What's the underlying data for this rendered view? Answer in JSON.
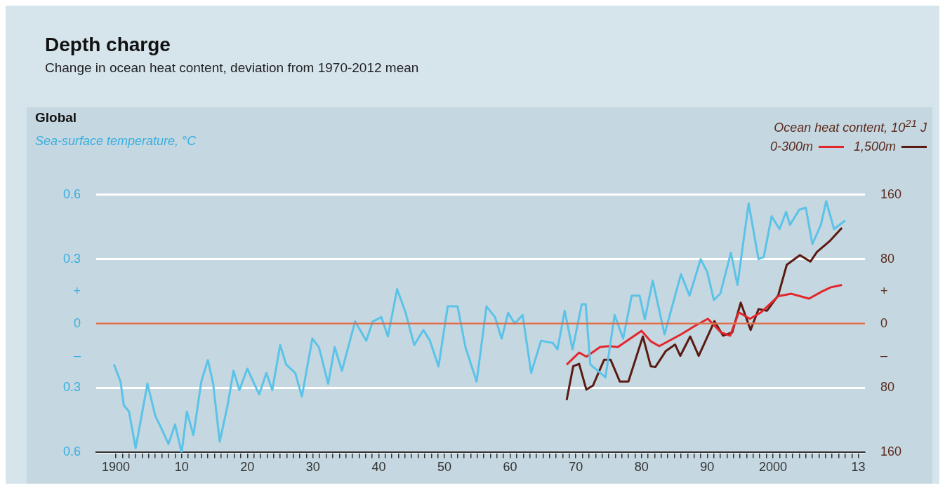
{
  "chart_data": {
    "type": "line",
    "title": "Depth charge",
    "subtitle": "Change in ocean heat content, deviation from 1970-2012 mean",
    "annotations": [
      "Global"
    ],
    "ylabel": "Sea-surface temperature, °C",
    "legend_title": "Ocean heat content, 10$^{21}$ J",
    "legend": "top right",
    "grid": "y",
    "marker": "none",
    "line_style": "solid",
    "xlim": [
      1897,
      2014
    ],
    "xticks": [
      1900,
      {
        "value": 1901,
        "label": null
      },
      {
        "value": 1902,
        "label": null
      },
      {
        "value": 1903,
        "label": null
      },
      {
        "value": 1904,
        "label": null
      },
      {
        "value": 1905,
        "label": null
      },
      {
        "value": 1906,
        "label": null
      },
      {
        "value": 1907,
        "label": null
      },
      {
        "value": 1908,
        "label": null
      },
      {
        "value": 1909,
        "label": null
      },
      {
        "value": 1910,
        "label": "10"
      },
      {
        "value": 1911,
        "label": null
      },
      {
        "value": 1912,
        "label": null
      },
      {
        "value": 1913,
        "label": null
      },
      {
        "value": 1914,
        "label": null
      },
      {
        "value": 1915,
        "label": null
      },
      {
        "value": 1916,
        "label": null
      },
      {
        "value": 1917,
        "label": null
      },
      {
        "value": 1918,
        "label": null
      },
      {
        "value": 1919,
        "label": null
      },
      {
        "value": 1920,
        "label": "20"
      },
      {
        "value": 1921,
        "label": null
      },
      {
        "value": 1922,
        "label": null
      },
      {
        "value": 1923,
        "label": null
      },
      {
        "value": 1924,
        "label": null
      },
      {
        "value": 1925,
        "label": null
      },
      {
        "value": 1926,
        "label": null
      },
      {
        "value": 1927,
        "label": null
      },
      {
        "value": 1928,
        "label": null
      },
      {
        "value": 1929,
        "label": null
      },
      {
        "value": 1930,
        "label": "30"
      },
      {
        "value": 1931,
        "label": null
      },
      {
        "value": 1932,
        "label": null
      },
      {
        "value": 1933,
        "label": null
      },
      {
        "value": 1934,
        "label": null
      },
      {
        "value": 1935,
        "label": null
      },
      {
        "value": 1936,
        "label": null
      },
      {
        "value": 1937,
        "label": null
      },
      {
        "value": 1938,
        "label": null
      },
      {
        "value": 1939,
        "label": null
      },
      {
        "value": 1940,
        "label": "40"
      },
      {
        "value": 1941,
        "label": null
      },
      {
        "value": 1942,
        "label": null
      },
      {
        "value": 1943,
        "label": null
      },
      {
        "value": 1944,
        "label": null
      },
      {
        "value": 1945,
        "label": null
      },
      {
        "value": 1946,
        "label": null
      },
      {
        "value": 1947,
        "label": null
      },
      {
        "value": 1948,
        "label": null
      },
      {
        "value": 1949,
        "label": null
      },
      {
        "value": 1950,
        "label": "50"
      },
      {
        "value": 1951,
        "label": null
      },
      {
        "value": 1952,
        "label": null
      },
      {
        "value": 1953,
        "label": null
      },
      {
        "value": 1954,
        "label": null
      },
      {
        "value": 1955,
        "label": null
      },
      {
        "value": 1956,
        "label": null
      },
      {
        "value": 1957,
        "label": null
      },
      {
        "value": 1958,
        "label": null
      },
      {
        "value": 1959,
        "label": null
      },
      {
        "value": 1960,
        "label": "60"
      },
      {
        "value": 1961,
        "label": null
      },
      {
        "value": 1962,
        "label": null
      },
      {
        "value": 1963,
        "label": null
      },
      {
        "value": 1964,
        "label": null
      },
      {
        "value": 1965,
        "label": null
      },
      {
        "value": 1966,
        "label": null
      },
      {
        "value": 1967,
        "label": null
      },
      {
        "value": 1968,
        "label": null
      },
      {
        "value": 1969,
        "label": null
      },
      {
        "value": 1970,
        "label": "70"
      },
      {
        "value": 1971,
        "label": null
      },
      {
        "value": 1972,
        "label": null
      },
      {
        "value": 1973,
        "label": null
      },
      {
        "value": 1974,
        "label": null
      },
      {
        "value": 1975,
        "label": null
      },
      {
        "value": 1976,
        "label": null
      },
      {
        "value": 1977,
        "label": null
      },
      {
        "value": 1978,
        "label": null
      },
      {
        "value": 1979,
        "label": null
      },
      {
        "value": 1980,
        "label": "80"
      },
      {
        "value": 1981,
        "label": null
      },
      {
        "value": 1982,
        "label": null
      },
      {
        "value": 1983,
        "label": null
      },
      {
        "value": 1984,
        "label": null
      },
      {
        "value": 1985,
        "label": null
      },
      {
        "value": 1986,
        "label": null
      },
      {
        "value": 1987,
        "label": null
      },
      {
        "value": 1988,
        "label": null
      },
      {
        "value": 1989,
        "label": null
      },
      {
        "value": 1990,
        "label": "90"
      },
      {
        "value": 1991,
        "label": null
      },
      {
        "value": 1992,
        "label": null
      },
      {
        "value": 1993,
        "label": null
      },
      {
        "value": 1994,
        "label": null
      },
      {
        "value": 1995,
        "label": null
      },
      {
        "value": 1996,
        "label": null
      },
      {
        "value": 1997,
        "label": null
      },
      {
        "value": 1998,
        "label": null
      },
      {
        "value": 1999,
        "label": null
      },
      2000,
      {
        "value": 2001,
        "label": null
      },
      {
        "value": 2002,
        "label": null
      },
      {
        "value": 2003,
        "label": null
      },
      {
        "value": 2004,
        "label": null
      },
      {
        "value": 2005,
        "label": null
      },
      {
        "value": 2006,
        "label": null
      },
      {
        "value": 2007,
        "label": null
      },
      {
        "value": 2008,
        "label": null
      },
      {
        "value": 2009,
        "label": null
      },
      {
        "value": 2010,
        "label": null
      },
      {
        "value": 2011,
        "label": null
      },
      {
        "value": 2012,
        "label": null
      },
      {
        "value": 2013,
        "label": "13"
      }
    ],
    "ylim": [
      -0.6,
      0.6
    ],
    "yticks": [
      0.6,
      0.3,
      {
        "value": 0.15,
        "label": "+"
      },
      0,
      {
        "value": -0.15,
        "label": "–"
      },
      {
        "value": -0.3,
        "label": "0.3"
      },
      {
        "value": -0.6,
        "label": "0.6"
      }
    ],
    "y2lim": [
      -160,
      160
    ],
    "y2ticks": [
      160,
      80,
      {
        "value": 40,
        "label": "+"
      },
      0,
      {
        "value": -40,
        "label": "–"
      },
      {
        "value": -80,
        "label": "80"
      },
      {
        "value": -160,
        "label": "160"
      }
    ],
    "ref_lines": [
      {
        "axis": "y",
        "value": 0,
        "color": "#d9704f"
      }
    ],
    "series": [
      {
        "color": "#5bc3e8",
        "x": [
          1899.7,
          1900.7,
          1901.2,
          1902,
          1903,
          1904.8,
          1906,
          1906.8,
          1908,
          1909,
          1910,
          1910.8,
          1911.8,
          1913,
          1914,
          1914.8,
          1915.8,
          1917,
          1917.9,
          1918.8,
          1920,
          1921.8,
          1922.9,
          1923.8,
          1925,
          1925.9,
          1927.3,
          1928.3,
          1929.9,
          1930.9,
          1932.3,
          1933.3,
          1934.4,
          1936.4,
          1938.1,
          1939.1,
          1940.4,
          1941.4,
          1942.8,
          1944.1,
          1945.4,
          1946.8,
          1947.8,
          1949.1,
          1950.5,
          1952,
          1953.2,
          1954.9,
          1956.4,
          1957.7,
          1958.7,
          1959.7,
          1960.7,
          1961.9,
          1963.2,
          1964.7,
          1966.5,
          1967.2,
          1968.3,
          1969.5,
          1970.9,
          1971.5,
          1972.2,
          1974.5,
          1975.9,
          1977.2,
          1978.5,
          1979.7,
          1980.5,
          1981.7,
          1983.5,
          1986,
          1987.3,
          1989,
          1990,
          1991,
          1992,
          1993.6,
          1994.6,
          1996.3,
          1997.8,
          1998.6,
          1999.8,
          2001,
          2002,
          2002.6,
          2004,
          2005,
          2006,
          2007.3,
          2008.1,
          2009.3,
          2011
        ],
        "values": [
          -0.19,
          -0.27,
          -0.38,
          -0.41,
          -0.58,
          -0.28,
          -0.43,
          -0.48,
          -0.56,
          -0.47,
          -0.6,
          -0.41,
          -0.52,
          -0.27,
          -0.17,
          -0.28,
          -0.55,
          -0.38,
          -0.22,
          -0.31,
          -0.21,
          -0.33,
          -0.23,
          -0.31,
          -0.1,
          -0.19,
          -0.23,
          -0.34,
          -0.07,
          -0.11,
          -0.28,
          -0.11,
          -0.22,
          0.01,
          -0.08,
          0.01,
          0.03,
          -0.06,
          0.16,
          0.05,
          -0.1,
          -0.03,
          -0.08,
          -0.2,
          0.08,
          0.08,
          -0.11,
          -0.27,
          0.08,
          0.03,
          -0.07,
          0.05,
          0,
          0.04,
          -0.23,
          -0.08,
          -0.09,
          -0.12,
          0.06,
          -0.12,
          0.09,
          0.09,
          -0.19,
          -0.25,
          0.04,
          -0.07,
          0.13,
          0.13,
          0.02,
          0.2,
          -0.05,
          0.23,
          0.13,
          0.3,
          0.24,
          0.11,
          0.14,
          0.33,
          0.18,
          0.56,
          0.3,
          0.31,
          0.5,
          0.44,
          0.52,
          0.46,
          0.53,
          0.54,
          0.37,
          0.46,
          0.57,
          0.44,
          0.48
        ]
      },
      {
        "name": "0-300m",
        "color": "#e3262b",
        "axis": "y2",
        "x": [
          1968.6,
          1970.5,
          1971.6,
          1973.7,
          1975,
          1976.4,
          1980,
          1981.4,
          1982.7,
          1986.1,
          1988.1,
          1990.1,
          1992.1,
          1993.5,
          1994.8,
          1996.5,
          1998.2,
          2000.8,
          2002.8,
          2005.5,
          2007.5,
          2008.8,
          2010.5
        ],
        "values": [
          -51,
          -36,
          -41,
          -29,
          -28,
          -29,
          -9,
          -22,
          -28,
          -13,
          -3,
          6,
          -11,
          -15,
          14,
          6,
          14,
          34,
          37,
          31,
          40,
          45,
          48
        ]
      },
      {
        "name": "1,500m",
        "color": "#5b1a12",
        "axis": "y2",
        "x": [
          1968.6,
          1969.6,
          1970.5,
          1971.6,
          1972.6,
          1974.3,
          1975.3,
          1976.7,
          1978,
          1980.2,
          1981.4,
          1982.1,
          1983.7,
          1985.1,
          1985.9,
          1987.4,
          1988.7,
          1991.1,
          1992.4,
          1993.8,
          1995.1,
          1996.6,
          1997.8,
          1999.1,
          2000.8,
          2002.1,
          2004.1,
          2005.7,
          2006.7,
          2008.7,
          2010.5
        ],
        "values": [
          -95,
          -53,
          -50,
          -82,
          -77,
          -45,
          -45,
          -72,
          -72,
          -16,
          -53,
          -54,
          -34,
          -26,
          -40,
          -16,
          -40,
          3,
          -15,
          -11,
          26,
          -8,
          18,
          16,
          35,
          73,
          85,
          77,
          89,
          103,
          119
        ]
      }
    ]
  }
}
